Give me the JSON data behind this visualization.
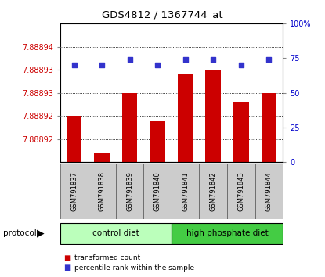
{
  "title": "GDS4812 / 1367744_at",
  "samples": [
    "GSM791837",
    "GSM791838",
    "GSM791839",
    "GSM791840",
    "GSM791841",
    "GSM791842",
    "GSM791843",
    "GSM791844"
  ],
  "bar_values": [
    7.888925,
    7.888917,
    7.88893,
    7.888924,
    7.888934,
    7.888935,
    7.888928,
    7.88893
  ],
  "percentile_values": [
    70,
    70,
    74,
    70,
    74,
    74,
    70,
    74
  ],
  "bar_color": "#cc0000",
  "dot_color": "#3333cc",
  "y_min": 7.888915,
  "y_max": 7.888945,
  "left_tick_vals": [
    7.88892,
    7.888925,
    7.88893,
    7.888935,
    7.88894
  ],
  "left_tick_labels": [
    "7.88892",
    "7.88892",
    "7.88893",
    "7.88893",
    "7.88894"
  ],
  "right_ticks": [
    0,
    25,
    50,
    75,
    100
  ],
  "right_tick_labels": [
    "0",
    "25",
    "50",
    "75",
    "100%"
  ],
  "ctrl_color": "#bbffbb",
  "high_color": "#44cc44",
  "tick_color_left": "#cc0000",
  "tick_color_right": "#0000cc"
}
